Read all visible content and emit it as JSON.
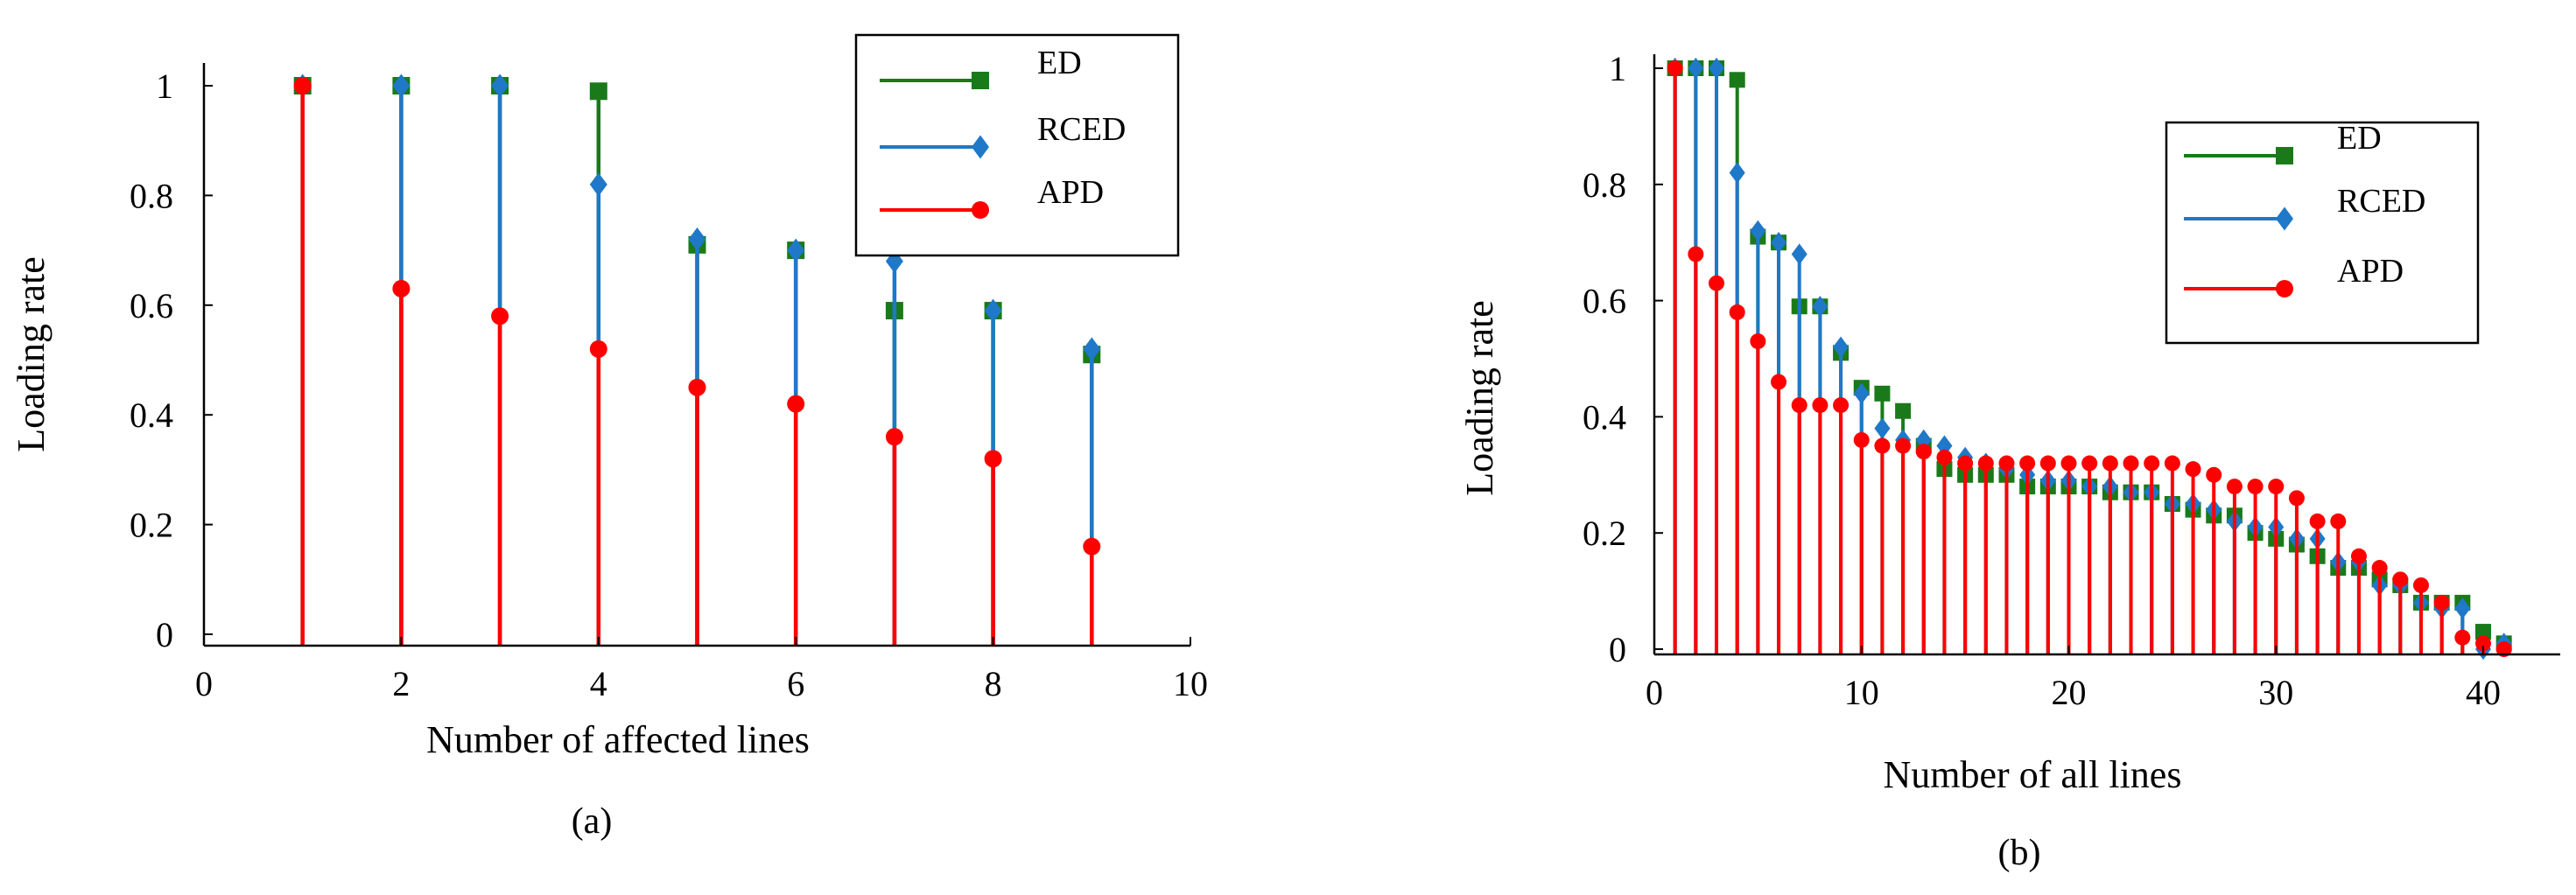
{
  "colors": {
    "ED": "#1a7a1a",
    "RCED": "#1f78c8",
    "APD": "#ff0000",
    "axis": "#000000"
  },
  "chart_data": [
    {
      "type": "stem",
      "caption": "(a)",
      "xlabel": "Number of affected lines",
      "ylabel": "Loading rate",
      "xlim": [
        0,
        10
      ],
      "ylim": [
        0,
        1
      ],
      "xticks": [
        0,
        2,
        4,
        6,
        8,
        10
      ],
      "yticks": [
        0,
        0.2,
        0.4,
        0.6,
        0.8,
        1
      ],
      "xtick_labels": [
        "0",
        "2",
        "4",
        "6",
        "8",
        "10"
      ],
      "ytick_labels": [
        "0",
        "0.2",
        "0.4",
        "0.6",
        "0.8",
        "1"
      ],
      "legend_position": "top-right",
      "x": [
        1,
        2,
        3,
        4,
        5,
        6,
        7,
        8,
        9
      ],
      "series": [
        {
          "name": "ED",
          "marker": "square",
          "values": [
            1.0,
            1.0,
            1.0,
            0.99,
            0.71,
            0.7,
            0.59,
            0.59,
            0.51
          ]
        },
        {
          "name": "RCED",
          "marker": "diamond",
          "values": [
            1.0,
            1.0,
            1.0,
            0.82,
            0.72,
            0.7,
            0.68,
            0.59,
            0.52
          ]
        },
        {
          "name": "APD",
          "marker": "circle",
          "values": [
            1.0,
            0.63,
            0.58,
            0.52,
            0.45,
            0.42,
            0.36,
            0.32,
            0.16
          ]
        }
      ]
    },
    {
      "type": "stem",
      "caption": "(b)",
      "xlabel": "Number of all lines",
      "ylabel": "Loading rate",
      "xlim": [
        0,
        42
      ],
      "ylim": [
        0,
        1
      ],
      "xticks": [
        0,
        10,
        20,
        30,
        40
      ],
      "yticks": [
        0,
        0.2,
        0.4,
        0.6,
        0.8,
        1
      ],
      "xtick_labels": [
        "0",
        "10",
        "20",
        "30",
        "40"
      ],
      "ytick_labels": [
        "0",
        "0.2",
        "0.4",
        "0.6",
        "0.8",
        "1"
      ],
      "legend_position": "top-right",
      "x": [
        1,
        2,
        3,
        4,
        5,
        6,
        7,
        8,
        9,
        10,
        11,
        12,
        13,
        14,
        15,
        16,
        17,
        18,
        19,
        20,
        21,
        22,
        23,
        24,
        25,
        26,
        27,
        28,
        29,
        30,
        31,
        32,
        33,
        34,
        35,
        36,
        37,
        38,
        39,
        40,
        41
      ],
      "series": [
        {
          "name": "ED",
          "marker": "square",
          "values": [
            1.0,
            1.0,
            1.0,
            0.98,
            0.71,
            0.7,
            0.59,
            0.59,
            0.51,
            0.45,
            0.44,
            0.41,
            0.35,
            0.31,
            0.3,
            0.3,
            0.3,
            0.28,
            0.28,
            0.28,
            0.28,
            0.27,
            0.27,
            0.27,
            0.25,
            0.24,
            0.23,
            0.23,
            0.2,
            0.19,
            0.18,
            0.16,
            0.14,
            0.14,
            0.12,
            0.11,
            0.08,
            0.08,
            0.08,
            0.03,
            0.01
          ]
        },
        {
          "name": "RCED",
          "marker": "diamond",
          "values": [
            1.0,
            1.0,
            1.0,
            0.82,
            0.72,
            0.7,
            0.68,
            0.59,
            0.52,
            0.44,
            0.38,
            0.36,
            0.36,
            0.35,
            0.33,
            0.32,
            0.31,
            0.3,
            0.29,
            0.29,
            0.28,
            0.28,
            0.27,
            0.27,
            0.25,
            0.25,
            0.24,
            0.22,
            0.21,
            0.21,
            0.19,
            0.19,
            0.15,
            0.15,
            0.11,
            0.11,
            0.08,
            0.07,
            0.07,
            0.0,
            0.01
          ]
        },
        {
          "name": "APD",
          "marker": "circle",
          "values": [
            1.0,
            0.68,
            0.63,
            0.58,
            0.53,
            0.46,
            0.42,
            0.42,
            0.42,
            0.36,
            0.35,
            0.35,
            0.34,
            0.33,
            0.32,
            0.32,
            0.32,
            0.32,
            0.32,
            0.32,
            0.32,
            0.32,
            0.32,
            0.32,
            0.32,
            0.31,
            0.3,
            0.28,
            0.28,
            0.28,
            0.26,
            0.22,
            0.22,
            0.16,
            0.14,
            0.12,
            0.11,
            0.08,
            0.02,
            0.01,
            0.0
          ]
        }
      ]
    }
  ]
}
